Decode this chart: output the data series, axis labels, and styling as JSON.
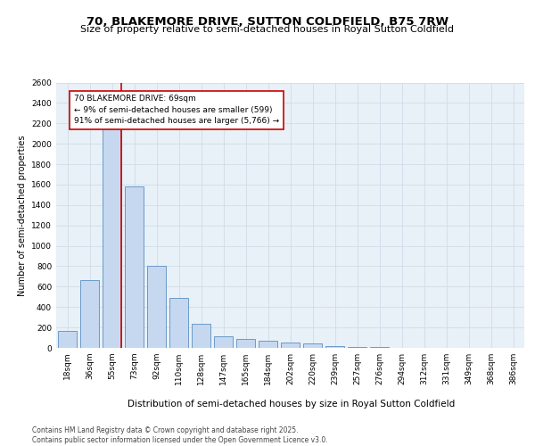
{
  "title1": "70, BLAKEMORE DRIVE, SUTTON COLDFIELD, B75 7RW",
  "title2": "Size of property relative to semi-detached houses in Royal Sutton Coldfield",
  "xlabel": "Distribution of semi-detached houses by size in Royal Sutton Coldfield",
  "ylabel": "Number of semi-detached properties",
  "categories": [
    "18sqm",
    "36sqm",
    "55sqm",
    "73sqm",
    "92sqm",
    "110sqm",
    "128sqm",
    "147sqm",
    "165sqm",
    "184sqm",
    "202sqm",
    "220sqm",
    "239sqm",
    "257sqm",
    "276sqm",
    "294sqm",
    "312sqm",
    "331sqm",
    "349sqm",
    "368sqm",
    "386sqm"
  ],
  "values": [
    170,
    660,
    2150,
    1580,
    800,
    490,
    240,
    110,
    90,
    70,
    55,
    45,
    20,
    10,
    5,
    2,
    0,
    0,
    1,
    0,
    0
  ],
  "bar_color": "#c5d8f0",
  "bar_edge_color": "#5a8fc0",
  "red_line_index": 2,
  "annotation_text": "70 BLAKEMORE DRIVE: 69sqm\n← 9% of semi-detached houses are smaller (599)\n91% of semi-detached houses are larger (5,766) →",
  "annotation_box_color": "#ffffff",
  "annotation_box_edge": "#cc0000",
  "ylim": [
    0,
    2600
  ],
  "yticks": [
    0,
    200,
    400,
    600,
    800,
    1000,
    1200,
    1400,
    1600,
    1800,
    2000,
    2200,
    2400,
    2600
  ],
  "grid_color": "#d0dce8",
  "background_color": "#e8f0f8",
  "footer_text": "Contains HM Land Registry data © Crown copyright and database right 2025.\nContains public sector information licensed under the Open Government Licence v3.0.",
  "title1_fontsize": 9.5,
  "title2_fontsize": 8,
  "annotation_fontsize": 6.5,
  "footer_fontsize": 5.5,
  "ylabel_fontsize": 7,
  "xlabel_fontsize": 7.5,
  "tick_fontsize": 6.5
}
